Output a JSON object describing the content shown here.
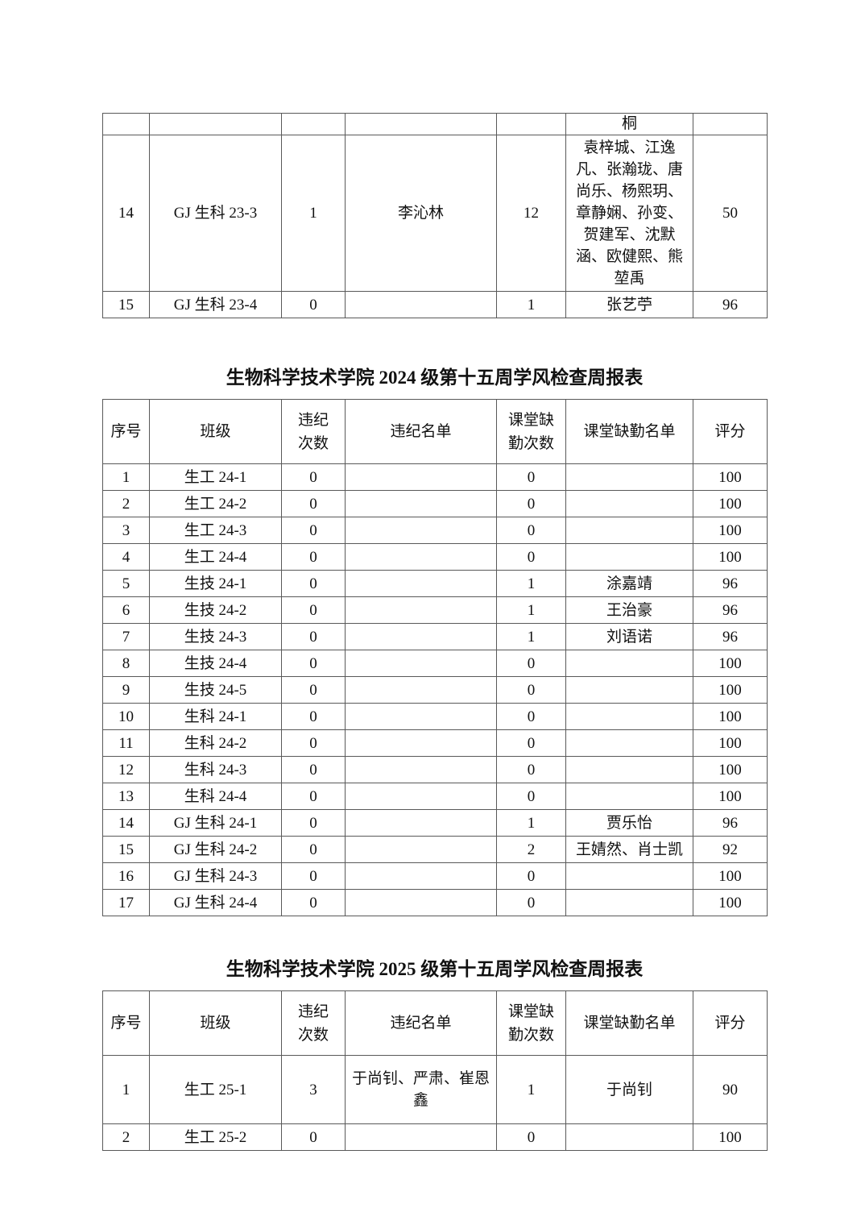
{
  "page": {
    "background": "#ffffff",
    "text_color": "#111111",
    "border_color": "#595959"
  },
  "columns": [
    {
      "key": "seq",
      "label": "序号"
    },
    {
      "key": "class",
      "label": "班级"
    },
    {
      "key": "violations",
      "label": "违纪\n次数"
    },
    {
      "key": "violation_names",
      "label": "违纪名单"
    },
    {
      "key": "absences",
      "label": "课堂缺\n勤次数"
    },
    {
      "key": "absence_names",
      "label": "课堂缺勤名单"
    },
    {
      "key": "score",
      "label": "评分"
    }
  ],
  "fragment_table_2023": {
    "rows": [
      {
        "seq": "",
        "class": "",
        "violations": "",
        "violation_names": "",
        "absences": "",
        "absence_names": "桐",
        "score": ""
      },
      {
        "seq": "14",
        "class": "GJ 生科 23-3",
        "violations": "1",
        "violation_names": "李沁林",
        "absences": "12",
        "absence_names": "袁梓城、江逸凡、张瀚珑、唐尚乐、杨熙玥、章静娴、孙变、贺建军、沈默涵、欧健熙、熊堃禹",
        "score": "50"
      },
      {
        "seq": "15",
        "class": "GJ 生科 23-4",
        "violations": "0",
        "violation_names": "",
        "absences": "1",
        "absence_names": "张艺苧",
        "score": "96"
      }
    ]
  },
  "table_2024": {
    "title": "生物科学技术学院 2024 级第十五周学风检查周报表",
    "rows": [
      {
        "seq": "1",
        "class": "生工 24-1",
        "violations": "0",
        "violation_names": "",
        "absences": "0",
        "absence_names": "",
        "score": "100"
      },
      {
        "seq": "2",
        "class": "生工 24-2",
        "violations": "0",
        "violation_names": "",
        "absences": "0",
        "absence_names": "",
        "score": "100"
      },
      {
        "seq": "3",
        "class": "生工 24-3",
        "violations": "0",
        "violation_names": "",
        "absences": "0",
        "absence_names": "",
        "score": "100"
      },
      {
        "seq": "4",
        "class": "生工 24-4",
        "violations": "0",
        "violation_names": "",
        "absences": "0",
        "absence_names": "",
        "score": "100"
      },
      {
        "seq": "5",
        "class": "生技 24-1",
        "violations": "0",
        "violation_names": "",
        "absences": "1",
        "absence_names": "涂嘉靖",
        "score": "96"
      },
      {
        "seq": "6",
        "class": "生技 24-2",
        "violations": "0",
        "violation_names": "",
        "absences": "1",
        "absence_names": "王治豪",
        "score": "96"
      },
      {
        "seq": "7",
        "class": "生技 24-3",
        "violations": "0",
        "violation_names": "",
        "absences": "1",
        "absence_names": "刘语诺",
        "score": "96"
      },
      {
        "seq": "8",
        "class": "生技 24-4",
        "violations": "0",
        "violation_names": "",
        "absences": "0",
        "absence_names": "",
        "score": "100"
      },
      {
        "seq": "9",
        "class": "生技 24-5",
        "violations": "0",
        "violation_names": "",
        "absences": "0",
        "absence_names": "",
        "score": "100"
      },
      {
        "seq": "10",
        "class": "生科 24-1",
        "violations": "0",
        "violation_names": "",
        "absences": "0",
        "absence_names": "",
        "score": "100"
      },
      {
        "seq": "11",
        "class": "生科 24-2",
        "violations": "0",
        "violation_names": "",
        "absences": "0",
        "absence_names": "",
        "score": "100"
      },
      {
        "seq": "12",
        "class": "生科 24-3",
        "violations": "0",
        "violation_names": "",
        "absences": "0",
        "absence_names": "",
        "score": "100"
      },
      {
        "seq": "13",
        "class": "生科 24-4",
        "violations": "0",
        "violation_names": "",
        "absences": "0",
        "absence_names": "",
        "score": "100"
      },
      {
        "seq": "14",
        "class": "GJ 生科 24-1",
        "violations": "0",
        "violation_names": "",
        "absences": "1",
        "absence_names": "贾乐怡",
        "score": "96"
      },
      {
        "seq": "15",
        "class": "GJ 生科 24-2",
        "violations": "0",
        "violation_names": "",
        "absences": "2",
        "absence_names": "王婧然、肖士凯",
        "score": "92"
      },
      {
        "seq": "16",
        "class": "GJ 生科 24-3",
        "violations": "0",
        "violation_names": "",
        "absences": "0",
        "absence_names": "",
        "score": "100"
      },
      {
        "seq": "17",
        "class": "GJ 生科 24-4",
        "violations": "0",
        "violation_names": "",
        "absences": "0",
        "absence_names": "",
        "score": "100"
      }
    ]
  },
  "table_2025": {
    "title": "生物科学技术学院 2025 级第十五周学风检查周报表",
    "rows": [
      {
        "seq": "1",
        "class": "生工 25-1",
        "violations": "3",
        "violation_names": "于尚钊、严肃、崔恩鑫",
        "absences": "1",
        "absence_names": "于尚钊",
        "score": "90"
      },
      {
        "seq": "2",
        "class": "生工 25-2",
        "violations": "0",
        "violation_names": "",
        "absences": "0",
        "absence_names": "",
        "score": "100"
      }
    ]
  }
}
